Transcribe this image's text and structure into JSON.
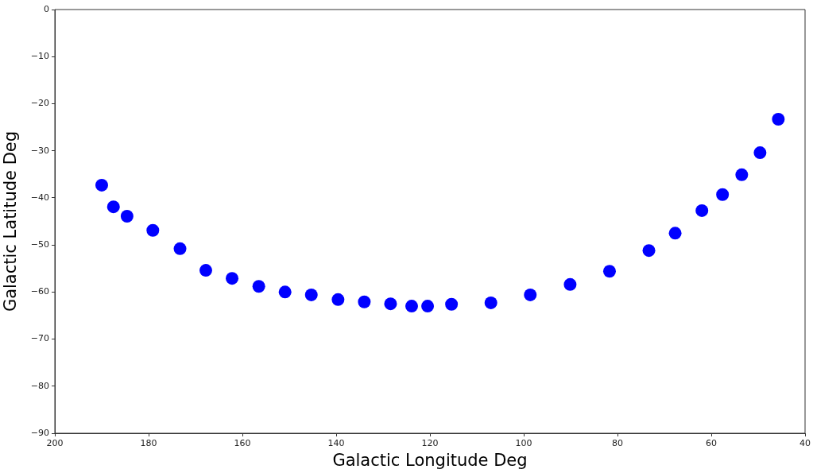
{
  "chart_data": {
    "type": "scatter",
    "xlabel": "Galactic Longitude Deg",
    "ylabel": "Galactic Latitude Deg",
    "xlim": [
      200,
      40
    ],
    "xticks": [
      200,
      180,
      160,
      140,
      120,
      100,
      80,
      60,
      40
    ],
    "ylim": [
      -90,
      0
    ],
    "yticks": [
      -90,
      -80,
      -70,
      -60,
      -50,
      -40,
      -30,
      -20,
      -10,
      0
    ],
    "marker": "circle",
    "legend": false,
    "series": [
      {
        "color": "#0000ff",
        "x": [
          190.0,
          187.5,
          184.6,
          179.1,
          173.3,
          167.8,
          162.2,
          156.5,
          150.9,
          145.3,
          139.6,
          134.0,
          128.4,
          123.9,
          120.5,
          115.4,
          107.0,
          98.6,
          90.1,
          81.7,
          73.3,
          67.7,
          62.0,
          57.6,
          53.5,
          49.6,
          45.7
        ],
        "values": [
          -37.3,
          -41.9,
          -43.9,
          -46.9,
          -50.8,
          -55.4,
          -57.1,
          -58.8,
          -60.0,
          -60.6,
          -61.6,
          -62.1,
          -62.5,
          -63.0,
          -63.0,
          -62.6,
          -62.3,
          -60.6,
          -58.4,
          -55.6,
          -51.2,
          -47.5,
          -42.7,
          -39.3,
          -35.1,
          -30.4,
          -23.3
        ]
      }
    ]
  }
}
